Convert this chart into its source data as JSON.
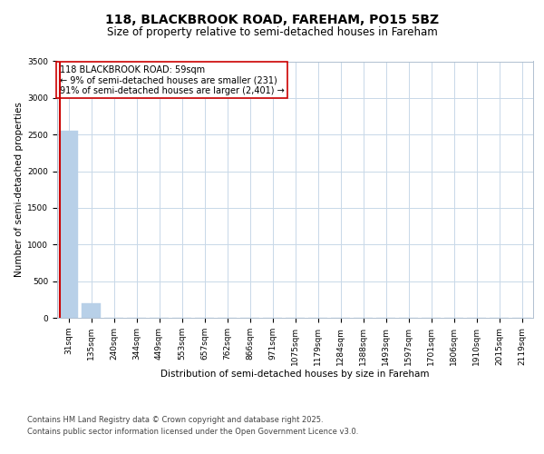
{
  "title1": "118, BLACKBROOK ROAD, FAREHAM, PO15 5BZ",
  "title2": "Size of property relative to semi-detached houses in Fareham",
  "xlabel": "Distribution of semi-detached houses by size in Fareham",
  "ylabel": "Number of semi-detached properties",
  "categories": [
    "31sqm",
    "135sqm",
    "240sqm",
    "344sqm",
    "449sqm",
    "553sqm",
    "657sqm",
    "762sqm",
    "866sqm",
    "971sqm",
    "1075sqm",
    "1179sqm",
    "1284sqm",
    "1388sqm",
    "1493sqm",
    "1597sqm",
    "1701sqm",
    "1806sqm",
    "1910sqm",
    "2015sqm",
    "2119sqm"
  ],
  "values": [
    2550,
    200,
    5,
    2,
    1,
    1,
    1,
    0,
    0,
    0,
    0,
    0,
    0,
    0,
    0,
    0,
    0,
    0,
    0,
    0,
    0
  ],
  "bar_color": "#b8d0e8",
  "highlight_line_color": "#cc0000",
  "ylim": [
    0,
    3500
  ],
  "yticks": [
    0,
    500,
    1000,
    1500,
    2000,
    2500,
    3000,
    3500
  ],
  "annotation_title": "118 BLACKBROOK ROAD: 59sqm",
  "annotation_line1": "← 9% of semi-detached houses are smaller (231)",
  "annotation_line2": "91% of semi-detached houses are larger (2,401) →",
  "annotation_box_color": "#ffffff",
  "annotation_box_edge": "#cc0000",
  "footer1": "Contains HM Land Registry data © Crown copyright and database right 2025.",
  "footer2": "Contains public sector information licensed under the Open Government Licence v3.0.",
  "bg_color": "#ffffff",
  "grid_color": "#c8d8e8",
  "title1_fontsize": 10,
  "title2_fontsize": 8.5,
  "axis_label_fontsize": 7.5,
  "tick_fontsize": 6.5,
  "annotation_fontsize": 7,
  "footer_fontsize": 6
}
